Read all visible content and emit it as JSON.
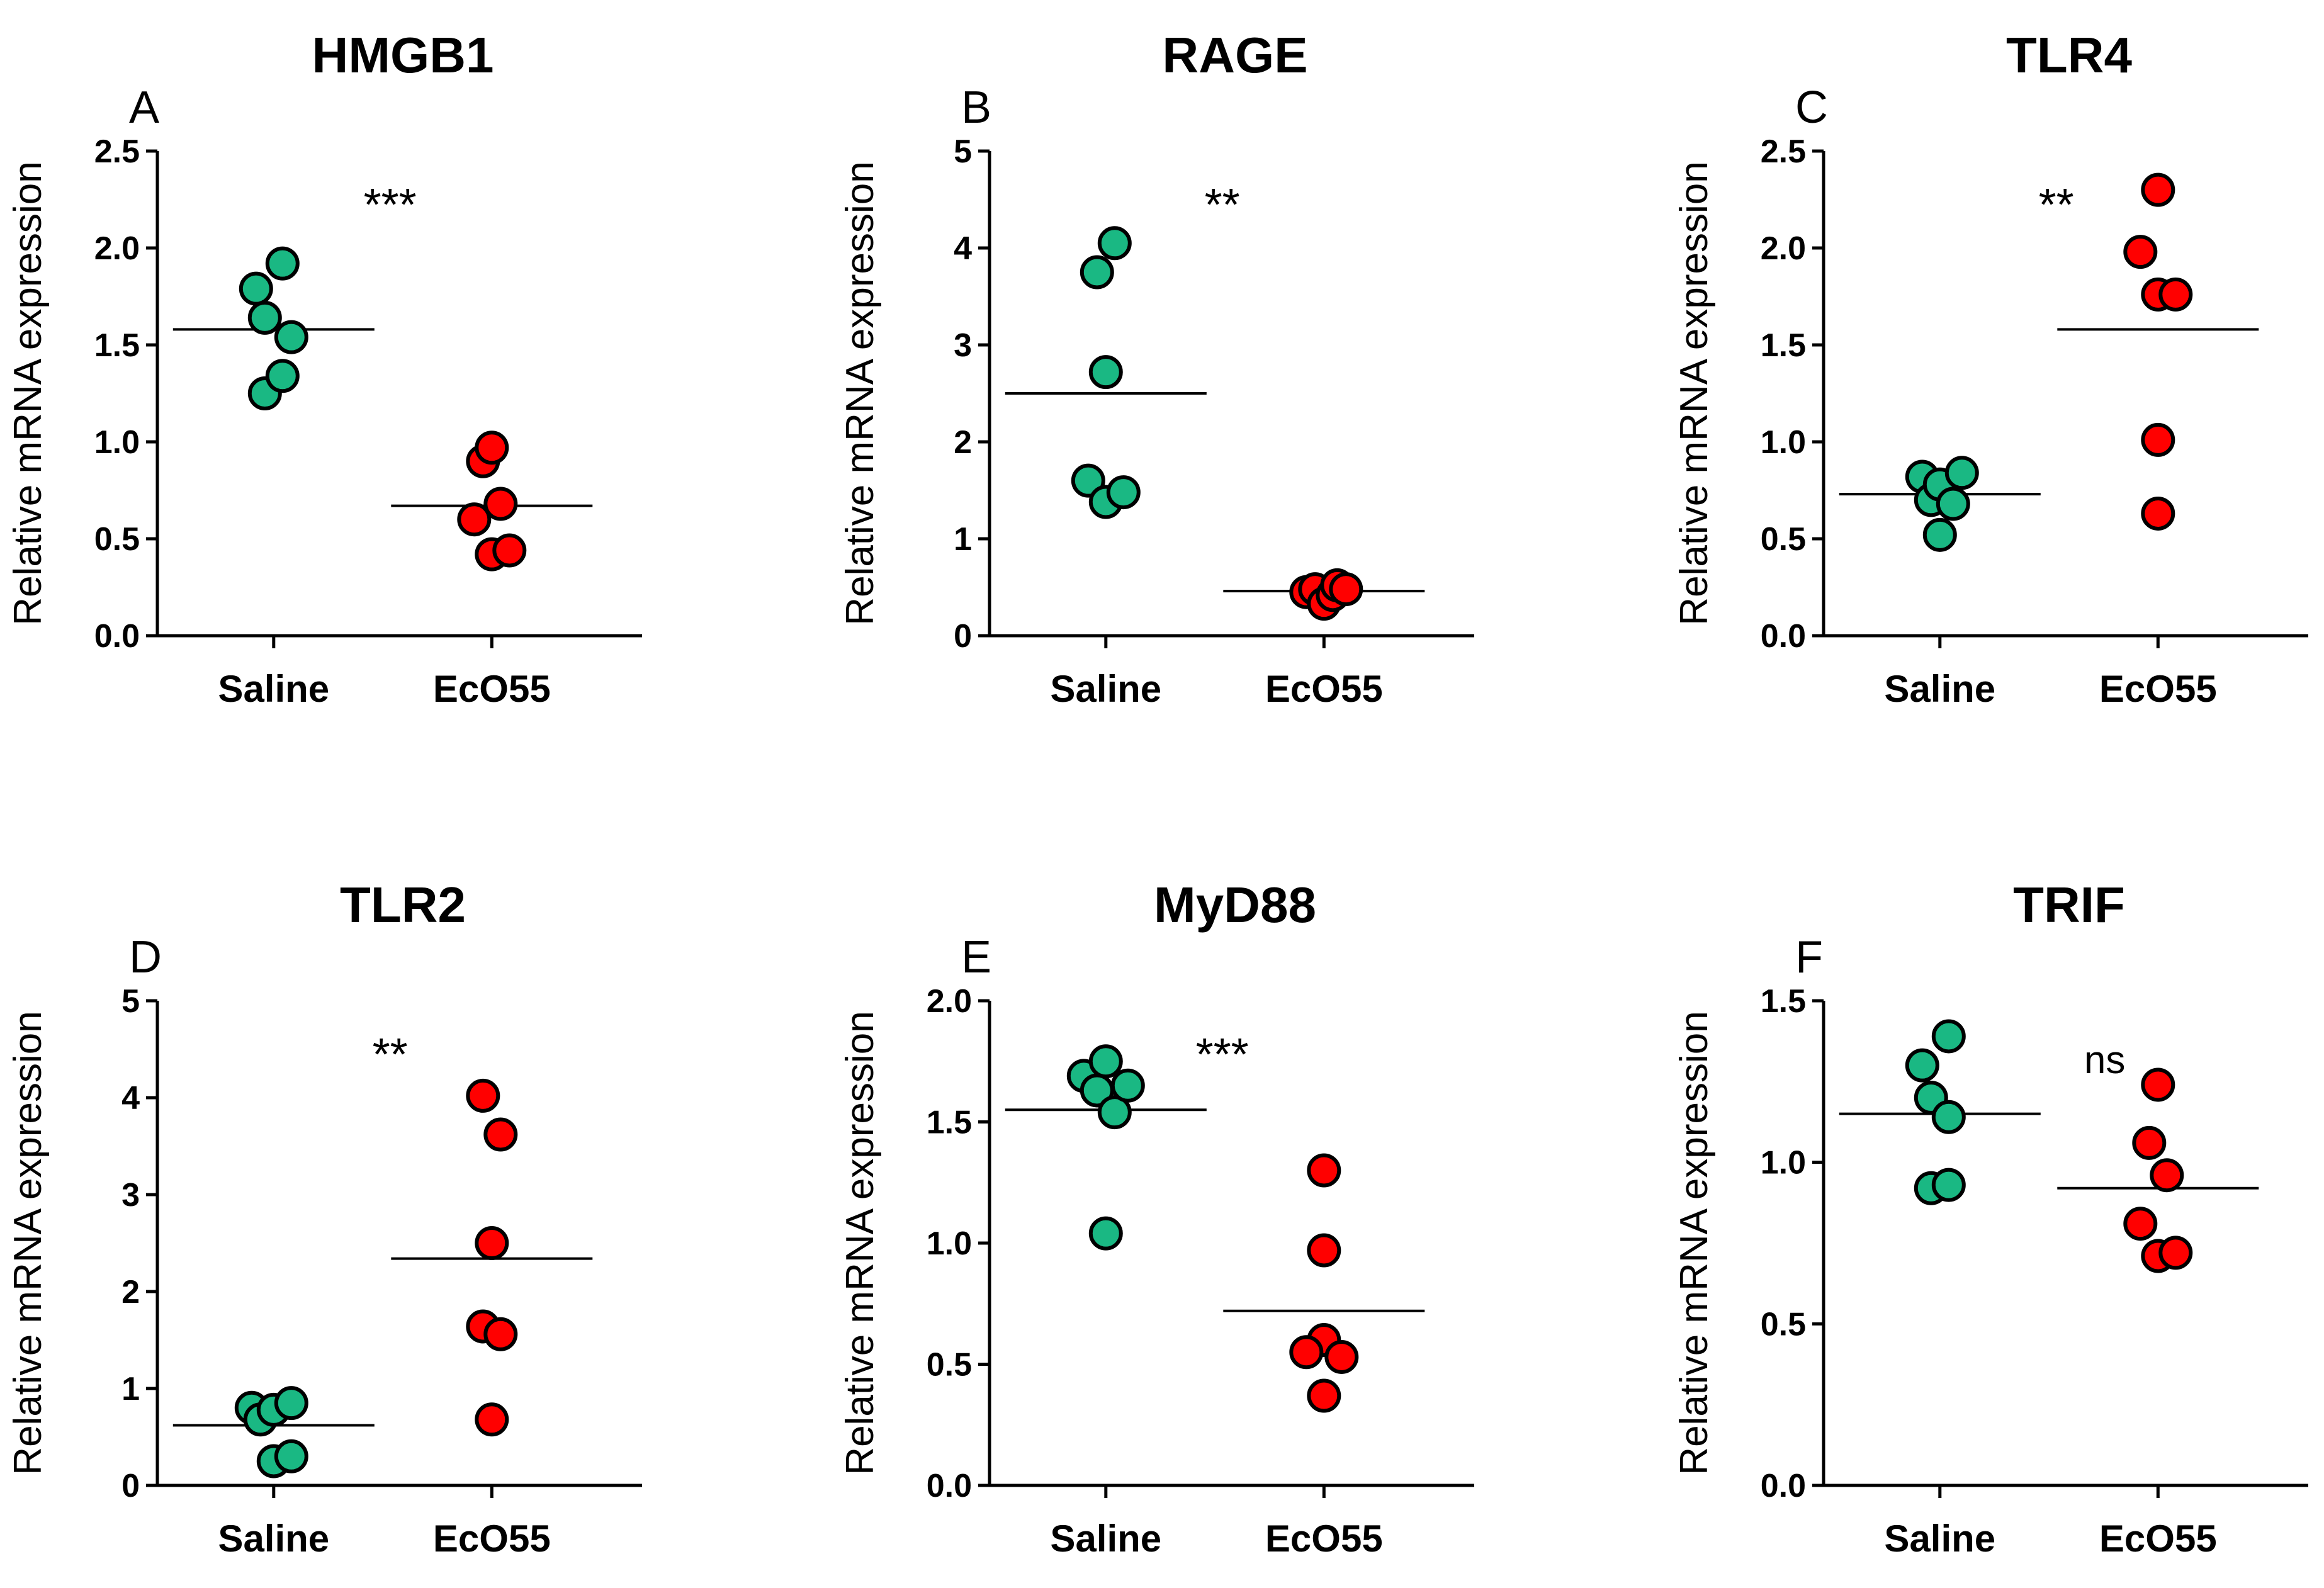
{
  "figure": {
    "colors": {
      "saline": "#1ab883",
      "eco55": "#ff0000",
      "stroke": "#000000",
      "text": "#000000"
    }
  },
  "chart_data": [
    {
      "type": "scatter",
      "panel": "A",
      "title": "HMGB1",
      "ylabel": "Relative mRNA expression",
      "xlabel": "",
      "categories": [
        "Saline",
        "EcO55"
      ],
      "ylim": [
        0,
        2.5
      ],
      "yticks": [
        "0.0",
        "0.5",
        "1.0",
        "1.5",
        "2.0",
        "2.5"
      ],
      "series": [
        {
          "name": "Saline",
          "values": [
            1.79,
            1.64,
            1.92,
            1.54,
            1.25,
            1.34
          ],
          "jitter": [
            -0.2,
            -0.1,
            0.1,
            0.2,
            -0.1,
            0.1
          ],
          "mean": 1.58
        },
        {
          "name": "EcO55",
          "values": [
            0.9,
            0.97,
            0.6,
            0.68,
            0.42,
            0.44
          ],
          "jitter": [
            -0.1,
            0.0,
            -0.2,
            0.1,
            0.0,
            0.2
          ],
          "mean": 0.67
        }
      ],
      "significance": "***"
    },
    {
      "type": "scatter",
      "panel": "B",
      "title": "RAGE",
      "ylabel": "Relative mRNA expression",
      "xlabel": "",
      "categories": [
        "Saline",
        "EcO55"
      ],
      "ylim": [
        0,
        5
      ],
      "yticks": [
        "0",
        "1",
        "2",
        "3",
        "4",
        "5"
      ],
      "series": [
        {
          "name": "Saline",
          "values": [
            3.75,
            4.05,
            2.72,
            1.6,
            1.38,
            1.48
          ],
          "jitter": [
            -0.1,
            0.1,
            0.0,
            -0.2,
            0.0,
            0.2
          ],
          "mean": 2.5
        },
        {
          "name": "EcO55",
          "values": [
            0.45,
            0.48,
            0.33,
            0.42,
            0.52,
            0.48
          ],
          "jitter": [
            -0.2,
            -0.1,
            0.0,
            0.1,
            0.15,
            0.25
          ],
          "mean": 0.46
        }
      ],
      "significance": "**"
    },
    {
      "type": "scatter",
      "panel": "C",
      "title": "TLR4",
      "ylabel": "Relative mRNA expression",
      "xlabel": "",
      "categories": [
        "Saline",
        "EcO55"
      ],
      "ylim": [
        0,
        2.5
      ],
      "yticks": [
        "0.0",
        "0.5",
        "1.0",
        "1.5",
        "2.0",
        "2.5"
      ],
      "series": [
        {
          "name": "Saline",
          "values": [
            0.82,
            0.7,
            0.78,
            0.52,
            0.68,
            0.84
          ],
          "jitter": [
            -0.2,
            -0.1,
            0.0,
            0.0,
            0.15,
            0.25
          ],
          "mean": 0.73
        },
        {
          "name": "EcO55",
          "values": [
            2.3,
            1.98,
            1.76,
            1.76,
            1.01,
            0.63
          ],
          "jitter": [
            0.0,
            -0.2,
            0.0,
            0.2,
            0.0,
            0.0
          ],
          "mean": 1.58
        }
      ],
      "significance": "**"
    },
    {
      "type": "scatter",
      "panel": "D",
      "title": "TLR2",
      "ylabel": "Relative mRNA expression",
      "xlabel": "",
      "categories": [
        "Saline",
        "EcO55"
      ],
      "ylim": [
        0,
        5
      ],
      "yticks": [
        "0",
        "1",
        "2",
        "3",
        "4",
        "5"
      ],
      "series": [
        {
          "name": "Saline",
          "values": [
            0.8,
            0.68,
            0.78,
            0.85,
            0.25,
            0.3
          ],
          "jitter": [
            -0.25,
            -0.15,
            0.0,
            0.2,
            0.0,
            0.2
          ],
          "mean": 0.62
        },
        {
          "name": "EcO55",
          "values": [
            4.02,
            3.62,
            2.5,
            1.64,
            1.56,
            0.68
          ],
          "jitter": [
            -0.1,
            0.1,
            0.0,
            -0.1,
            0.1,
            0.0
          ],
          "mean": 2.34
        }
      ],
      "significance": "**"
    },
    {
      "type": "scatter",
      "panel": "E",
      "title": "MyD88",
      "ylabel": "Relative mRNA expression",
      "xlabel": "",
      "categories": [
        "Saline",
        "EcO55"
      ],
      "ylim": [
        0,
        2.0
      ],
      "yticks": [
        "0.0",
        "0.5",
        "1.0",
        "1.5",
        "2.0"
      ],
      "series": [
        {
          "name": "Saline",
          "values": [
            1.69,
            1.63,
            1.75,
            1.54,
            1.65,
            1.04
          ],
          "jitter": [
            -0.25,
            -0.1,
            0.0,
            0.1,
            0.25,
            0.0
          ],
          "mean": 1.55
        },
        {
          "name": "EcO55",
          "values": [
            1.3,
            0.97,
            0.6,
            0.55,
            0.53,
            0.37
          ],
          "jitter": [
            0.0,
            0.0,
            0.0,
            -0.2,
            0.2,
            0.0
          ],
          "mean": 0.72
        }
      ],
      "significance": "***"
    },
    {
      "type": "scatter",
      "panel": "F",
      "title": "TRIF",
      "ylabel": "Relative mRNA expression",
      "xlabel": "",
      "categories": [
        "Saline",
        "EcO55"
      ],
      "ylim": [
        0,
        1.5
      ],
      "yticks": [
        "0.0",
        "0.5",
        "1.0",
        "1.5"
      ],
      "series": [
        {
          "name": "Saline",
          "values": [
            1.3,
            1.39,
            1.2,
            1.14,
            0.92,
            0.93
          ],
          "jitter": [
            -0.2,
            0.1,
            -0.1,
            0.1,
            -0.1,
            0.1
          ],
          "mean": 1.15
        },
        {
          "name": "EcO55",
          "values": [
            1.24,
            1.06,
            0.96,
            0.81,
            0.71,
            0.72
          ],
          "jitter": [
            0.0,
            -0.1,
            0.1,
            -0.2,
            0.0,
            0.2
          ],
          "mean": 0.92
        }
      ],
      "significance": "ns"
    }
  ]
}
